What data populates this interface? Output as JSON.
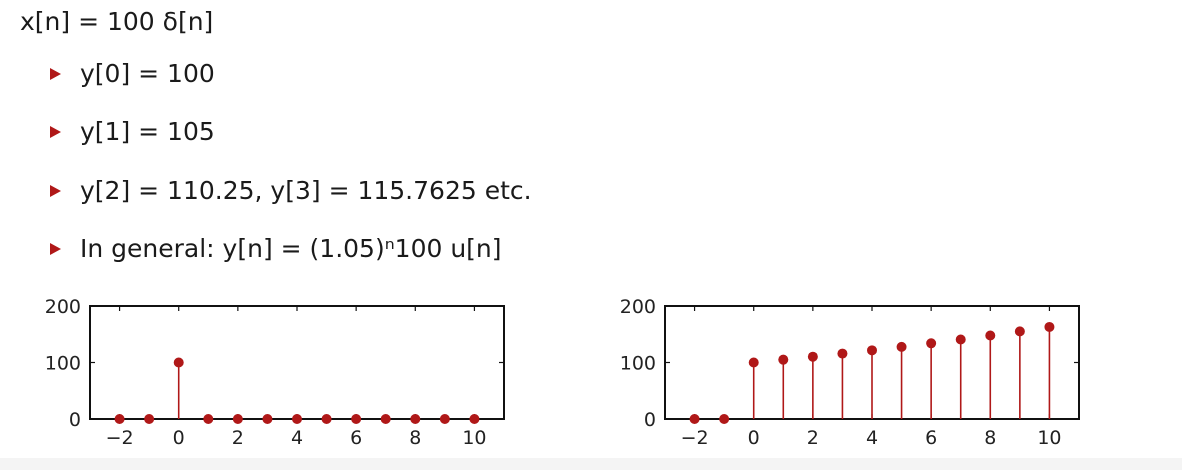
{
  "header": {
    "signal_equation": "x[n] = 100 δ[n]"
  },
  "bullets": [
    {
      "text": "y[0] = 100"
    },
    {
      "text": "y[1] = 105"
    },
    {
      "text": "y[2] = 110.25,  y[3] = 115.7625  etc."
    },
    {
      "text": "In general:  y[n] = (1.05)ⁿ100 u[n]"
    }
  ],
  "colors": {
    "accent": "#b01818",
    "stem": "#b01818"
  },
  "chart_data": [
    {
      "type": "stem",
      "title": "",
      "xlabel": "",
      "ylabel": "",
      "x": [
        -2,
        -1,
        0,
        1,
        2,
        3,
        4,
        5,
        6,
        7,
        8,
        9,
        10
      ],
      "y": [
        0,
        0,
        100,
        0,
        0,
        0,
        0,
        0,
        0,
        0,
        0,
        0,
        0
      ],
      "xlim": [
        -3,
        11
      ],
      "ylim": [
        0,
        200
      ],
      "xticks": [
        -2,
        0,
        2,
        4,
        6,
        8,
        10
      ],
      "xtick_labels": [
        "−2",
        "0",
        "2",
        "4",
        "6",
        "8",
        "10"
      ],
      "yticks": [
        0,
        100,
        200
      ],
      "ytick_labels": [
        "0",
        "100",
        "200"
      ],
      "grid": false
    },
    {
      "type": "stem",
      "title": "",
      "xlabel": "",
      "ylabel": "",
      "x": [
        -2,
        -1,
        0,
        1,
        2,
        3,
        4,
        5,
        6,
        7,
        8,
        9,
        10
      ],
      "y": [
        0,
        0,
        100,
        105,
        110.25,
        115.76,
        121.55,
        127.63,
        134.01,
        140.71,
        147.75,
        155.13,
        162.89
      ],
      "xlim": [
        -3,
        11
      ],
      "ylim": [
        0,
        200
      ],
      "xticks": [
        -2,
        0,
        2,
        4,
        6,
        8,
        10
      ],
      "xtick_labels": [
        "−2",
        "0",
        "2",
        "4",
        "6",
        "8",
        "10"
      ],
      "yticks": [
        0,
        100,
        200
      ],
      "ytick_labels": [
        "0",
        "100",
        "200"
      ],
      "grid": false
    }
  ]
}
